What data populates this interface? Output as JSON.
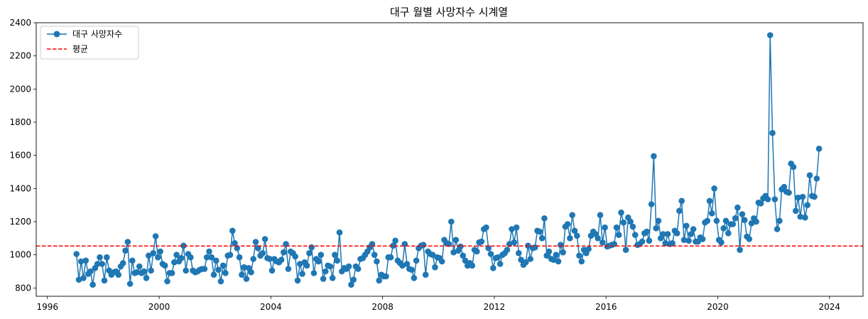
{
  "chart_data": {
    "type": "line",
    "title": "대구 월별 사망자수 시계열",
    "xlabel": "",
    "ylabel": "",
    "xlim": [
      1995.6,
      2025.2
    ],
    "ylim": [
      750,
      2400
    ],
    "x_ticks": [
      1996,
      2000,
      2004,
      2008,
      2012,
      2016,
      2020,
      2024
    ],
    "y_ticks": [
      800,
      1000,
      1200,
      1400,
      1600,
      1800,
      2000,
      2200,
      2400
    ],
    "legend": {
      "position": "top-left",
      "entries": [
        "대구 사망자수",
        "평균"
      ]
    },
    "colors": {
      "series": "#1f77b4",
      "mean": "#ff0000"
    },
    "mean_value": 1053,
    "series": [
      {
        "name": "대구 사망자수",
        "start": "1997-01",
        "frequency": "monthly",
        "values": [
          1005,
          850,
          960,
          860,
          965,
          885,
          900,
          820,
          920,
          945,
          985,
          945,
          845,
          985,
          905,
          880,
          895,
          900,
          880,
          930,
          950,
          1025,
          1078,
          825,
          965,
          890,
          895,
          930,
          890,
          900,
          860,
          995,
          905,
          1010,
          1112,
          985,
          1020,
          945,
          935,
          840,
          890,
          890,
          955,
          1000,
          960,
          980,
          1055,
          905,
          1005,
          985,
          905,
          895,
          900,
          910,
          915,
          915,
          985,
          1020,
          985,
          880,
          965,
          910,
          840,
          935,
          890,
          995,
          1000,
          1145,
          1070,
          1040,
          985,
          880,
          925,
          855,
          920,
          895,
          975,
          1078,
          1040,
          995,
          1010,
          1095,
          980,
          975,
          905,
          975,
          960,
          955,
          970,
          1015,
          1065,
          915,
          1020,
          1010,
          990,
          845,
          945,
          885,
          955,
          935,
          1010,
          1045,
          890,
          975,
          960,
          1000,
          855,
          900,
          935,
          930,
          860,
          1000,
          965,
          1135,
          900,
          920,
          915,
          930,
          820,
          850,
          930,
          915,
          975,
          980,
          1000,
          1020,
          1045,
          1065,
          1000,
          960,
          845,
          880,
          870,
          870,
          985,
          985,
          1055,
          1085,
          965,
          950,
          935,
          1065,
          945,
          915,
          910,
          860,
          965,
          1040,
          1055,
          1060,
          880,
          1020,
          1005,
          1000,
          925,
          985,
          980,
          960,
          1090,
          1070,
          1065,
          1200,
          1015,
          1090,
          1025,
          1050,
          995,
          965,
          935,
          950,
          935,
          1030,
          1020,
          1075,
          1080,
          1155,
          1165,
          1040,
          1005,
          920,
          980,
          985,
          945,
          1000,
          1010,
          1030,
          1065,
          1155,
          1075,
          1165,
          1010,
          970,
          940,
          955,
          1055,
          975,
          1040,
          1045,
          1145,
          1140,
          1100,
          1220,
          995,
          1020,
          975,
          970,
          1000,
          960,
          1060,
          1015,
          1170,
          1185,
          1100,
          1240,
          1145,
          1115,
          995,
          960,
          1030,
          1010,
          1035,
          1115,
          1140,
          1125,
          1100,
          1240,
          1075,
          1165,
          1050,
          1055,
          1060,
          1065,
          1165,
          1120,
          1255,
          1195,
          1030,
          1225,
          1200,
          1170,
          1120,
          1060,
          1065,
          1080,
          1130,
          1140,
          1085,
          1305,
          1595,
          1160,
          1205,
          1100,
          1125,
          1070,
          1125,
          1065,
          1070,
          1145,
          1130,
          1265,
          1325,
          1090,
          1175,
          1085,
          1125,
          1155,
          1080,
          1080,
          1105,
          1095,
          1195,
          1205,
          1325,
          1250,
          1400,
          1205,
          1090,
          1075,
          1160,
          1205,
          1130,
          1185,
          1185,
          1220,
          1285,
          1030,
          1245,
          1210,
          1110,
          1095,
          1190,
          1220,
          1200,
          1315,
          1310,
          1340,
          1355,
          1335,
          2325,
          1735,
          1335,
          1155,
          1205,
          1395,
          1410,
          1380,
          1375,
          1550,
          1530,
          1265,
          1345,
          1230,
          1350,
          1225,
          1300,
          1480,
          1355,
          1350,
          1460,
          1640
        ]
      }
    ]
  }
}
